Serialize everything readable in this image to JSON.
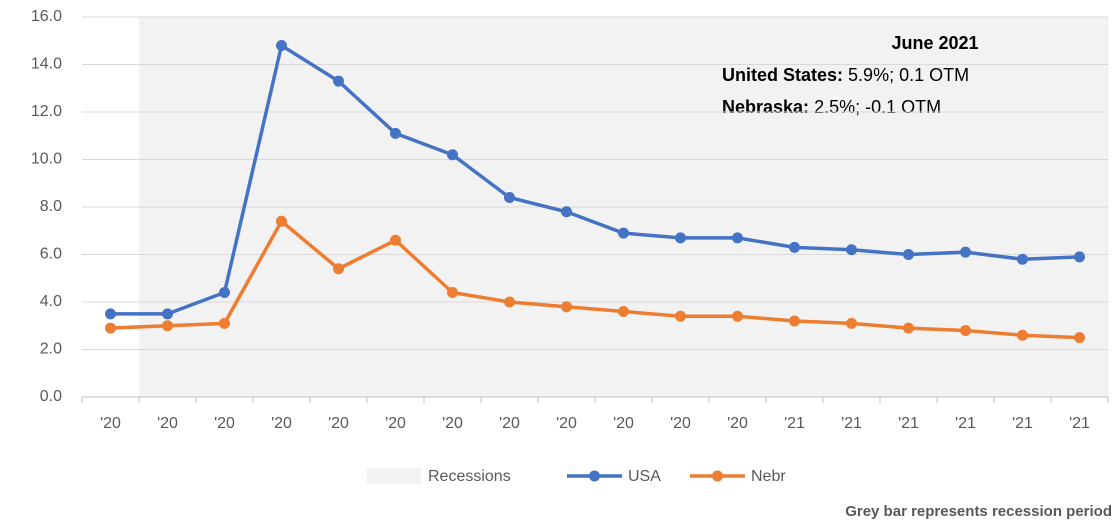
{
  "chart_data": {
    "type": "line",
    "categories": [
      "'20",
      "'20",
      "'20",
      "'20",
      "'20",
      "'20",
      "'20",
      "'20",
      "'20",
      "'20",
      "'20",
      "'20",
      "'21",
      "'21",
      "'21",
      "'21",
      "'21",
      "'21"
    ],
    "series": [
      {
        "name": "Recessions",
        "type": "bar",
        "color": "#f2f2f2",
        "values": [
          null,
          16,
          16,
          16,
          16,
          16,
          16,
          16,
          16,
          16,
          16,
          16,
          16,
          16,
          16,
          16,
          16,
          16
        ]
      },
      {
        "name": "USA",
        "color": "#4472c4",
        "values": [
          3.5,
          3.5,
          4.4,
          14.8,
          13.3,
          11.1,
          10.2,
          8.4,
          7.8,
          6.9,
          6.7,
          6.7,
          6.3,
          6.2,
          6.0,
          6.1,
          5.8,
          5.9
        ]
      },
      {
        "name": "Nebr",
        "color": "#ed7d31",
        "values": [
          2.9,
          3.0,
          3.1,
          7.4,
          5.4,
          6.6,
          4.4,
          4.0,
          3.8,
          3.6,
          3.4,
          3.4,
          3.2,
          3.1,
          2.9,
          2.8,
          2.6,
          2.5
        ]
      }
    ],
    "ylim": [
      0,
      16
    ],
    "yticks": [
      {
        "value": 0,
        "label": "0.0"
      },
      {
        "value": 2,
        "label": "2.0"
      },
      {
        "value": 4,
        "label": "4.0"
      },
      {
        "value": 6,
        "label": "6.0"
      },
      {
        "value": 8,
        "label": "8.0"
      },
      {
        "value": 10,
        "label": "10.0"
      },
      {
        "value": 12,
        "label": "12.0"
      },
      {
        "value": 14,
        "label": "14.0"
      },
      {
        "value": 16,
        "label": "16.0"
      }
    ],
    "grid": true,
    "legend": "bottom",
    "annotation": {
      "title": "June 2021",
      "lines": [
        {
          "label": "United States:",
          "text": "5.9%; 0.1 OTM"
        },
        {
          "label": "Nebraska:",
          "text": "2.5%; -0.1 OTM"
        }
      ]
    },
    "footnote": "Grey bar represents recession period"
  }
}
